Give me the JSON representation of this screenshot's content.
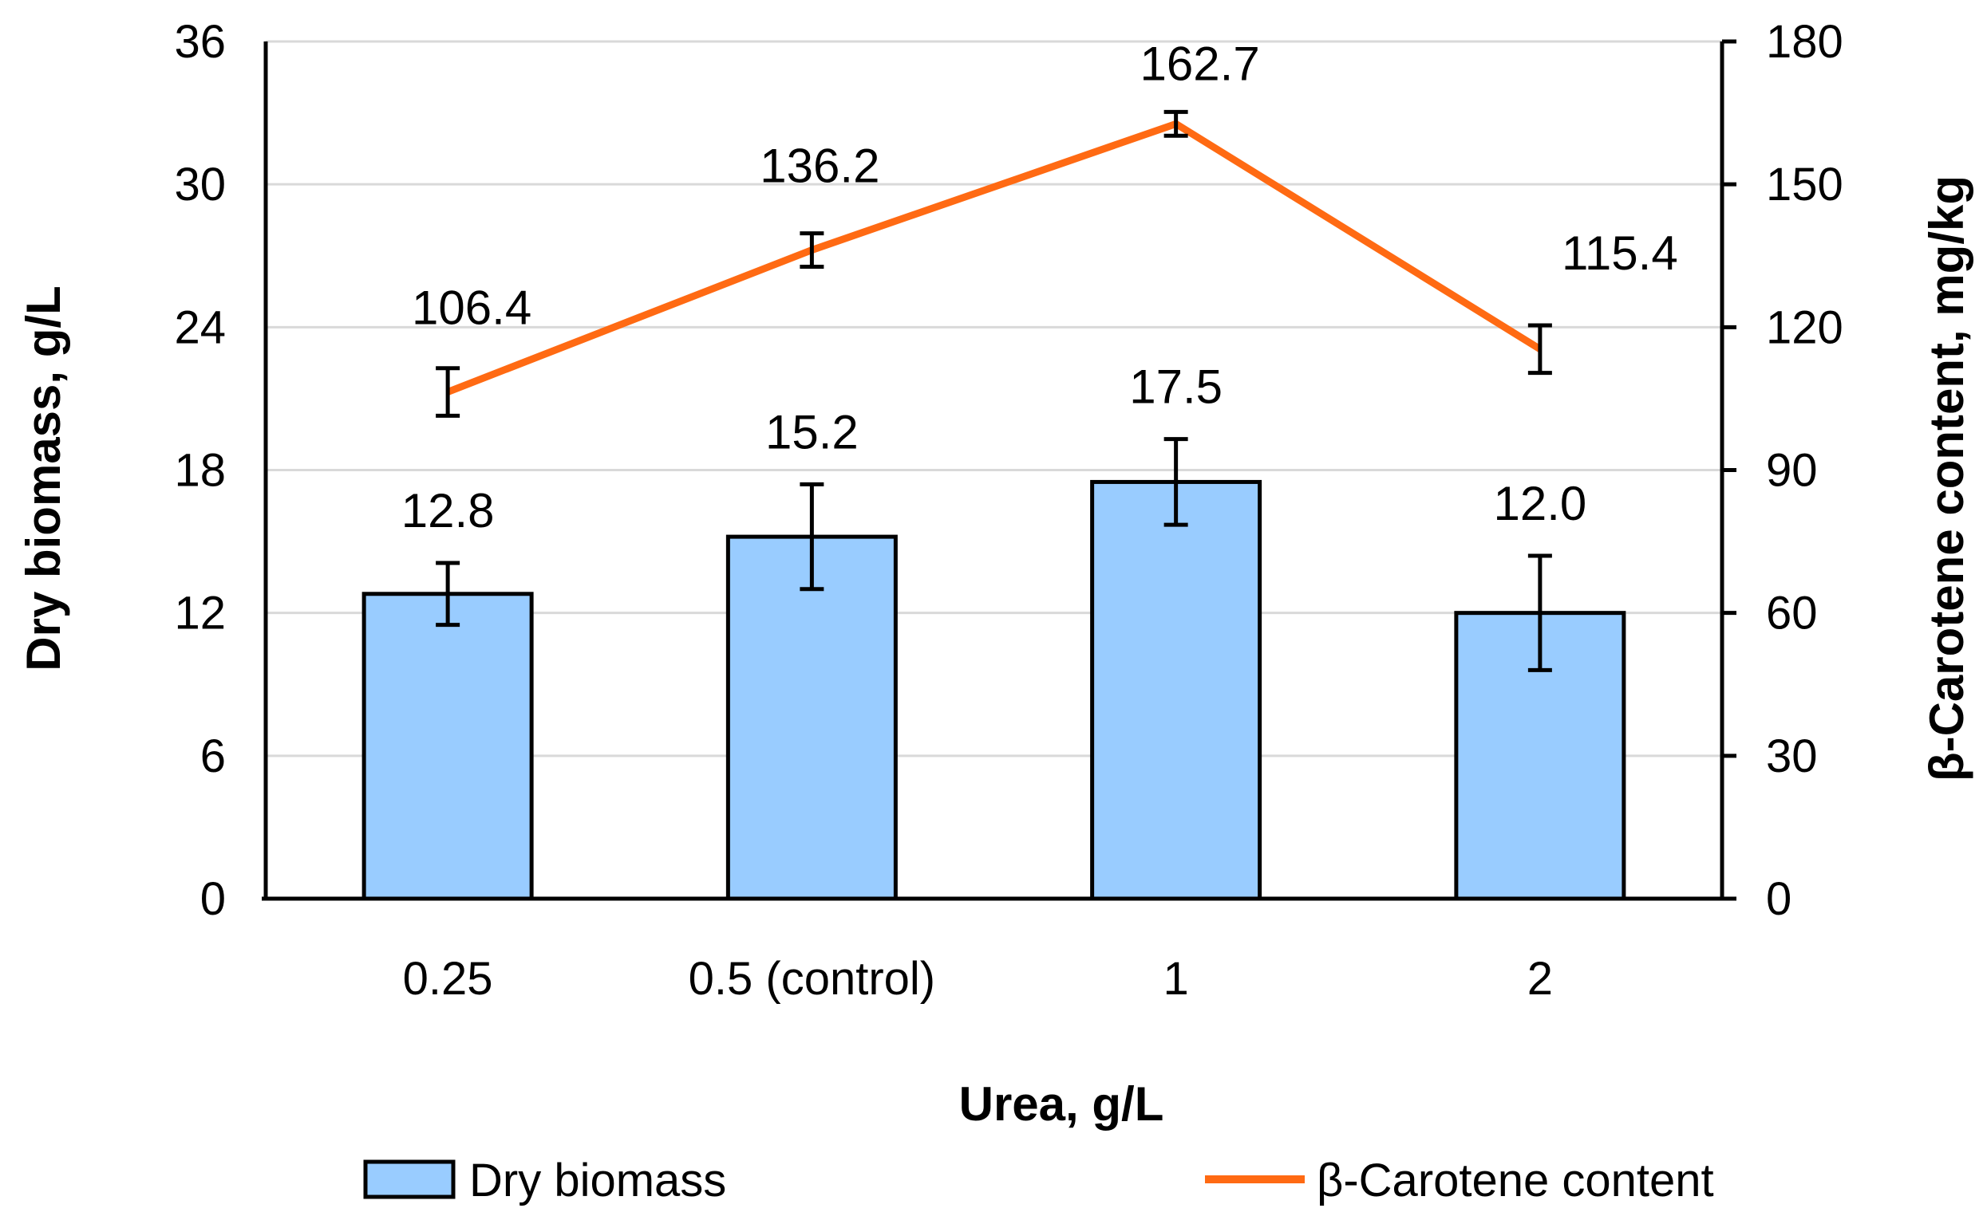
{
  "chart_data": {
    "type": "bar+line",
    "categories": [
      "0.25",
      "0.5 (control)",
      "1",
      "2"
    ],
    "xlabel": "Urea, g/L",
    "y_left": {
      "label": "Dry biomass, g/L",
      "range": [
        0,
        36
      ],
      "ticks": [
        "0",
        "6",
        "12",
        "18",
        "24",
        "30",
        "36"
      ]
    },
    "y_right": {
      "label": "β-Carotene content, mg/kg",
      "range": [
        0,
        180
      ],
      "ticks": [
        "0",
        "30",
        "60",
        "90",
        "120",
        "150",
        "180"
      ]
    },
    "gridlines": true,
    "series": [
      {
        "name": "Dry biomass",
        "kind": "bar",
        "axis": "left",
        "values": [
          12.8,
          15.2,
          17.5,
          12.0
        ],
        "labels": [
          "12.8",
          "15.2",
          "17.5",
          "12.0"
        ],
        "errors": [
          1.3,
          2.2,
          1.8,
          2.4
        ],
        "color": "#99CCFF"
      },
      {
        "name": "β-Carotene content",
        "kind": "line",
        "axis": "right",
        "values": [
          106.4,
          136.2,
          162.7,
          115.4
        ],
        "labels": [
          "106.4",
          "136.2",
          "162.7",
          "115.4"
        ],
        "errors": [
          5,
          3.5,
          2.5,
          5
        ],
        "color": "#FF6A13"
      }
    ],
    "legend": {
      "position": "bottom"
    }
  }
}
